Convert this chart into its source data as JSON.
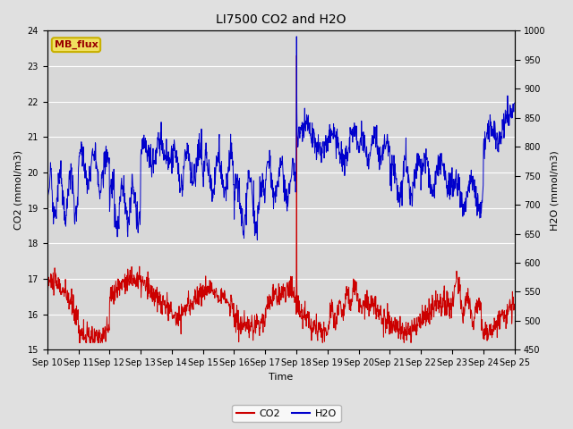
{
  "title": "LI7500 CO2 and H2O",
  "xlabel": "Time",
  "ylabel_left": "CO2 (mmol/m3)",
  "ylabel_right": "H2O (mmol/m3)",
  "ylim_left": [
    15.0,
    24.0
  ],
  "ylim_right": [
    450,
    1000
  ],
  "co2_color": "#cc0000",
  "h2o_color": "#0000cc",
  "fig_bg_color": "#e0e0e0",
  "plot_bg_color": "#d8d8d8",
  "legend_box_facecolor": "#f0e060",
  "legend_box_edgecolor": "#c8b000",
  "legend_box_text": "MB_flux",
  "legend_box_text_color": "#990000",
  "grid_color": "#ffffff",
  "tick_label_fontsize": 7,
  "axis_label_fontsize": 8,
  "title_fontsize": 10,
  "co2_yticks": [
    15.0,
    16.0,
    17.0,
    18.0,
    19.0,
    20.0,
    21.0,
    22.0,
    23.0,
    24.0
  ],
  "h2o_yticks": [
    450,
    500,
    550,
    600,
    650,
    700,
    750,
    800,
    850,
    900,
    950,
    1000
  ],
  "x_tick_labels": [
    "Sep 10",
    "Sep 11",
    "Sep 12",
    "Sep 13",
    "Sep 14",
    "Sep 15",
    "Sep 16",
    "Sep 17",
    "Sep 18",
    "Sep 19",
    "Sep 20",
    "Sep 21",
    "Sep 22",
    "Sep 23",
    "Sep 24",
    "Sep 25"
  ],
  "x_tick_positions": [
    0,
    1,
    2,
    3,
    4,
    5,
    6,
    7,
    8,
    9,
    10,
    11,
    12,
    13,
    14,
    15
  ]
}
